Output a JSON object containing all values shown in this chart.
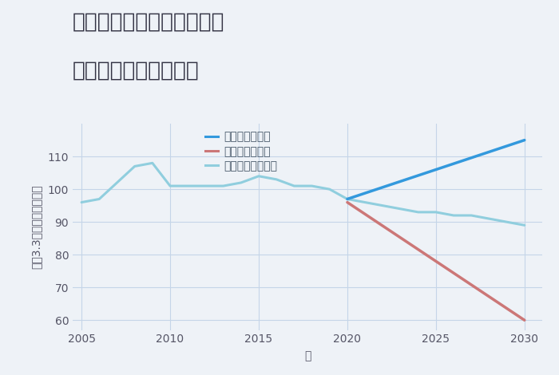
{
  "title_line1": "兵庫県姫路市北条永良町の",
  "title_line2": "中古戸建ての価格推移",
  "xlabel": "年",
  "ylabel": "坪（3.3㎡）単価（万円）",
  "ylim": [
    57,
    120
  ],
  "xlim": [
    2004.5,
    2031
  ],
  "yticks": [
    60,
    70,
    80,
    90,
    100,
    110
  ],
  "xticks": [
    2005,
    2010,
    2015,
    2020,
    2025,
    2030
  ],
  "background_color": "#eef2f7",
  "plot_bg_color": "#eef2f7",
  "grid_color": "#c5d5e8",
  "normal_scenario": {
    "years": [
      2005,
      2006,
      2007,
      2008,
      2009,
      2010,
      2011,
      2012,
      2013,
      2014,
      2015,
      2016,
      2017,
      2018,
      2019,
      2020,
      2021,
      2022,
      2023,
      2024,
      2025,
      2026,
      2027,
      2028,
      2029,
      2030
    ],
    "values": [
      96,
      97,
      102,
      107,
      108,
      101,
      101,
      101,
      101,
      102,
      104,
      103,
      101,
      101,
      100,
      97,
      96,
      95,
      94,
      93,
      93,
      92,
      92,
      91,
      90,
      89
    ],
    "color": "#90CEDE",
    "linewidth": 2.2,
    "label": "ノーマルシナリオ"
  },
  "good_scenario": {
    "years": [
      2020,
      2025,
      2030
    ],
    "values": [
      97,
      106,
      115
    ],
    "color": "#3399DD",
    "linewidth": 2.5,
    "label": "グッドシナリオ"
  },
  "bad_scenario": {
    "years": [
      2020,
      2025,
      2030
    ],
    "values": [
      96,
      78,
      60
    ],
    "color": "#CC7777",
    "linewidth": 2.5,
    "label": "バッドシナリオ"
  },
  "title_fontsize": 19,
  "label_fontsize": 10,
  "tick_fontsize": 10,
  "legend_fontsize": 10,
  "title_color": "#333344",
  "axis_color": "#555566",
  "legend_text_color": "#445566"
}
